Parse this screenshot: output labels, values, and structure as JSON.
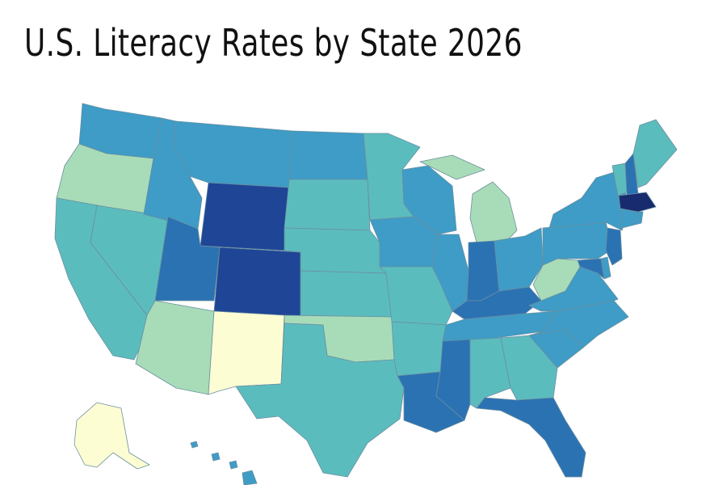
{
  "title": "U.S. Literacy Rates by State 2026",
  "palette": {
    "lightest": "#fdfdd4",
    "pale_green": "#a8dcb8",
    "teal": "#5bbcbe",
    "mid_blue": "#3e9cc6",
    "blue": "#2b72b3",
    "dark_blue": "#1f4596",
    "navy": "#172b6e"
  },
  "state_colors": {
    "WA": "mid_blue",
    "OR": "pale_green",
    "CA": "teal",
    "NV": "teal",
    "ID": "mid_blue",
    "MT": "mid_blue",
    "WY": "dark_blue",
    "UT": "blue",
    "CO": "dark_blue",
    "AZ": "pale_green",
    "NM": "lightest",
    "ND": "mid_blue",
    "SD": "teal",
    "NE": "teal",
    "KS": "teal",
    "OK": "pale_green",
    "TX": "teal",
    "MN": "teal",
    "IA": "mid_blue",
    "MO": "teal",
    "AR": "teal",
    "LA": "blue",
    "WI": "mid_blue",
    "IL": "mid_blue",
    "MI": "pale_green",
    "IN": "blue",
    "OH": "mid_blue",
    "KY": "blue",
    "TN": "mid_blue",
    "MS": "blue",
    "AL": "teal",
    "GA": "teal",
    "FL": "blue",
    "SC": "mid_blue",
    "NC": "mid_blue",
    "VA": "mid_blue",
    "WV": "pale_green",
    "PA": "mid_blue",
    "NY": "mid_blue",
    "VT": "teal",
    "NH": "blue",
    "ME": "teal",
    "MA": "navy",
    "CT": "mid_blue",
    "RI": "mid_blue",
    "NJ": "blue",
    "DE": "mid_blue",
    "MD": "blue",
    "AK": "lightest",
    "HI": "mid_blue"
  }
}
